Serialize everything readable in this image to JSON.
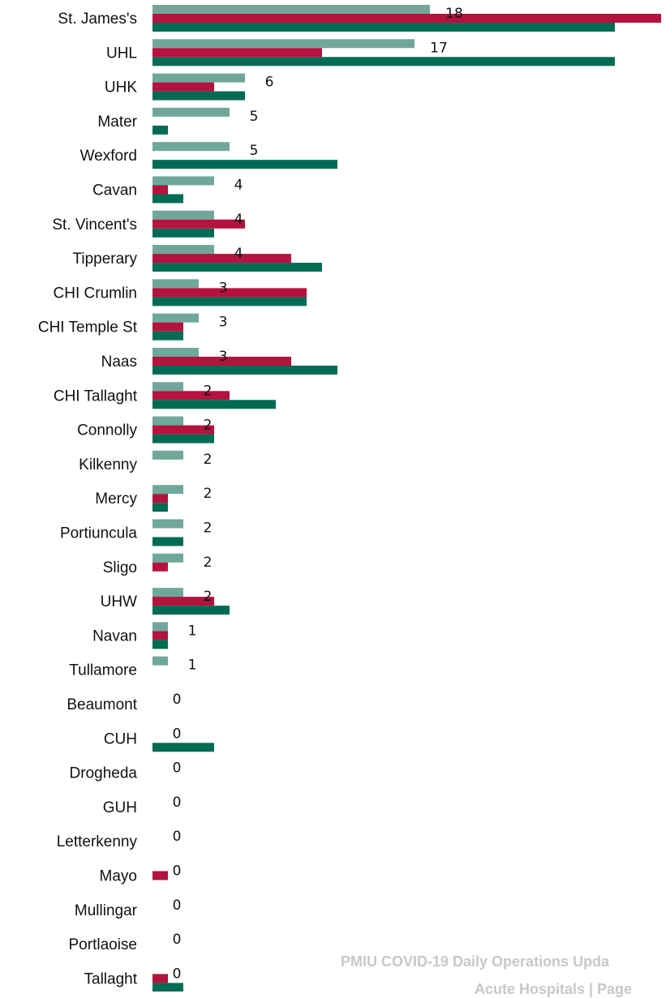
{
  "chart_data": {
    "type": "bar",
    "orientation": "horizontal",
    "categories": [
      "St. James's",
      "UHL",
      "UHK",
      "Mater",
      "Wexford",
      "Cavan",
      "St. Vincent's",
      "Tipperary",
      "CHI Crumlin",
      "CHI Temple St",
      "Naas",
      "CHI Tallaght",
      "Connolly",
      "Kilkenny",
      "Mercy",
      "Portiuncula",
      "Sligo",
      "UHW",
      "Navan",
      "Tullamore",
      "Beaumont",
      "CUH",
      "Drogheda",
      "GUH",
      "Letterkenny",
      "Mayo",
      "Mullingar",
      "Portlaoise",
      "Tallaght"
    ],
    "series": [
      {
        "color": "#6fa89a",
        "values": [
          18,
          17,
          6,
          5,
          5,
          4,
          4,
          4,
          3,
          3,
          3,
          2,
          2,
          2,
          2,
          2,
          2,
          2,
          1,
          1,
          0,
          0,
          0,
          0,
          0,
          0,
          0,
          0,
          0
        ],
        "labels": [
          "18",
          "17",
          "6",
          "5",
          "5",
          "4",
          "4",
          "4",
          "3",
          "3",
          "3",
          "2",
          "2",
          "2",
          "2",
          "2",
          "2",
          "2",
          "1",
          "1",
          "0",
          "0",
          "0",
          "0",
          "0",
          "0",
          "0",
          "0",
          "0"
        ]
      },
      {
        "color": "#b5123e",
        "values": [
          33,
          11,
          4,
          0,
          0,
          1,
          6,
          9,
          10,
          2,
          9,
          5,
          4,
          0,
          1,
          0,
          1,
          4,
          1,
          0,
          0,
          0,
          0,
          0,
          0,
          1,
          0,
          0,
          1
        ]
      },
      {
        "color": "#006b54",
        "values": [
          30,
          30,
          6,
          1,
          12,
          2,
          4,
          11,
          10,
          2,
          12,
          8,
          4,
          0,
          1,
          2,
          0,
          5,
          1,
          0,
          0,
          4,
          0,
          0,
          0,
          0,
          0,
          0,
          2
        ]
      }
    ],
    "xlim": [
      0,
      34
    ],
    "grid": false,
    "legend": "none"
  },
  "footer": {
    "line1": "PMIU COVID-19 Daily Operations Upda",
    "line2": "Acute Hospitals | Page"
  }
}
